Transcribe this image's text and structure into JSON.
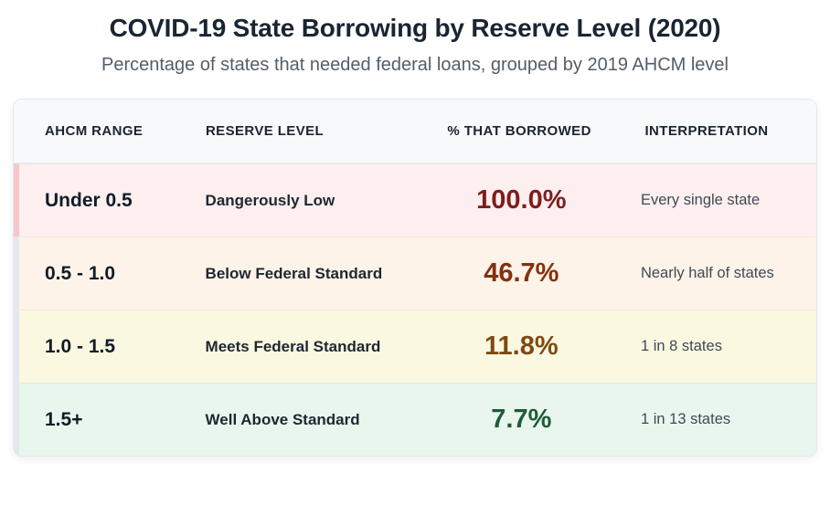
{
  "header": {
    "title": "COVID-19 State Borrowing by Reserve Level (2020)",
    "subtitle": "Percentage of states that needed federal loans, grouped by 2019 AHCM level"
  },
  "chart_data": {
    "type": "table",
    "title": "COVID-19 State Borrowing by Reserve Level (2020)",
    "subtitle": "Percentage of states that needed federal loans, grouped by 2019 AHCM level",
    "columns": [
      "AHCM RANGE",
      "RESERVE LEVEL",
      "% THAT BORROWED",
      "INTERPRETATION"
    ],
    "categories": [
      "Under 0.5",
      "0.5 - 1.0",
      "1.0 - 1.5",
      "1.5+"
    ],
    "values": [
      100.0,
      46.7,
      11.8,
      7.7
    ],
    "rows": [
      {
        "ahcm_range": "Under 0.5",
        "reserve_level": "Dangerously Low",
        "pct_borrowed": "100.0%",
        "interpretation": "Every single state",
        "row_bg": "#fdefef",
        "accent_color": "#f7c6c8",
        "value_color": "#7f1d1d"
      },
      {
        "ahcm_range": "0.5 - 1.0",
        "reserve_level": "Below Federal Standard",
        "pct_borrowed": "46.7%",
        "interpretation": "Nearly half of states",
        "row_bg": "#fdf3e9",
        "accent_color": "#e4e8ec",
        "value_color": "#84300f"
      },
      {
        "ahcm_range": "1.0 - 1.5",
        "reserve_level": "Meets Federal Standard",
        "pct_borrowed": "11.8%",
        "interpretation": "1 in 8 states",
        "row_bg": "#fbf8e2",
        "accent_color": "#e4e8ec",
        "value_color": "#7d4a12"
      },
      {
        "ahcm_range": "1.5+",
        "reserve_level": "Well Above Standard",
        "pct_borrowed": "7.7%",
        "interpretation": "1 in 13 states",
        "row_bg": "#e9f6ee",
        "accent_color": "#e4e8ec",
        "value_color": "#1d5c37"
      }
    ]
  },
  "colors": {
    "title_text": "#1a2533",
    "subtitle_text": "#535e69",
    "header_bg": "#f7f9fb",
    "header_text": "#1b2431",
    "card_border": "#e5e8ec"
  }
}
